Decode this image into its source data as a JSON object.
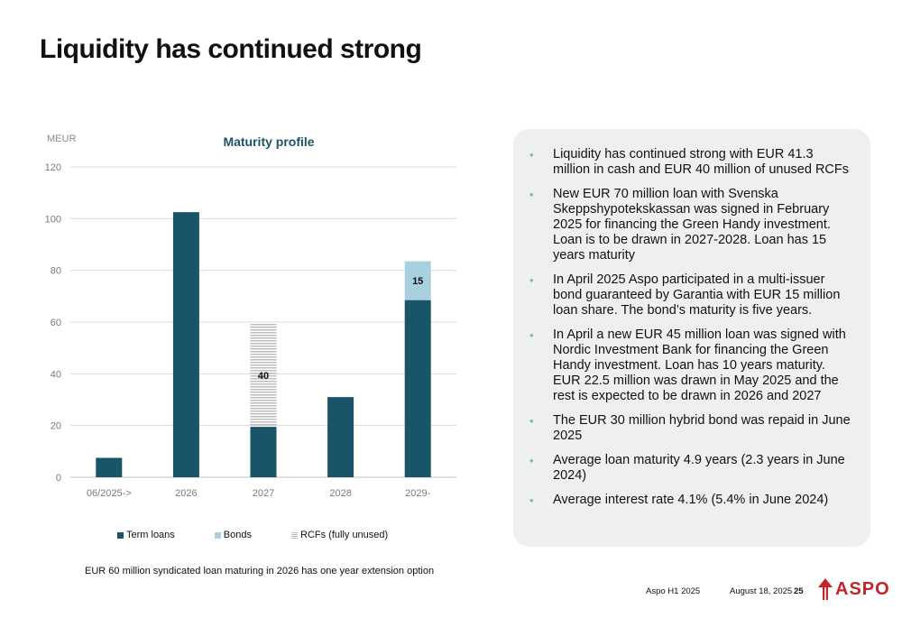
{
  "title": "Liquidity has continued strong",
  "chart_data": {
    "type": "bar",
    "title": "Maturity profile",
    "unit_label": "MEUR",
    "ylim": [
      0,
      120
    ],
    "y_ticks": [
      0,
      20,
      40,
      60,
      80,
      100,
      120
    ],
    "categories": [
      "06/2025->",
      "2026",
      "2027",
      "2028",
      "2029-"
    ],
    "stacked": true,
    "series": [
      {
        "name": "Term loans",
        "values": [
          7.5,
          102.5,
          19.5,
          31,
          68.5
        ],
        "color": "#1a5468",
        "pattern": "solid"
      },
      {
        "name": "Bonds",
        "values": [
          0,
          0,
          0,
          0,
          15
        ],
        "color": "#a9d0de",
        "pattern": "solid"
      },
      {
        "name": "RCFs (fully unused)",
        "values": [
          0,
          0,
          40,
          0,
          0
        ],
        "color": "#bdbdbd",
        "pattern": "horizontal-stripes"
      }
    ],
    "data_labels": [
      {
        "category": "2027",
        "series": "RCFs (fully unused)",
        "text": "40"
      },
      {
        "category": "2029-",
        "series": "Bonds",
        "text": "15"
      }
    ],
    "grid": true,
    "legend": "bottom"
  },
  "footnote": "EUR 60 million syndicated loan maturing in 2026 has one year extension option",
  "bullets": [
    "Liquidity has continued strong with EUR 41.3 million in cash and EUR 40 million of unused RCFs",
    "New EUR 70 million loan with Svenska Skeppshypotekskassan was signed in February 2025 for financing  the Green Handy investment. Loan is to be drawn in 2027-2028. Loan has 15 years maturity",
    "In April 2025 Aspo participated in a multi-issuer bond guaranteed by Garantia with EUR 15 million loan share. The bond’s maturity is five years.",
    "In April a new EUR 45 million loan was signed with Nordic Investment Bank for financing the Green Handy investment. Loan has 10 years maturity. EUR 22.5 million was drawn in May 2025 and the rest is expected to be drawn in 2026 and 2027",
    "The EUR 30 million hybrid bond was repaid in June 2025",
    "Average loan maturity 4.9 years (2.3 years in June 2024)",
    "Average interest rate 4.1% (5.4% in June 2024)"
  ],
  "bullet_glyph": "•",
  "footer": {
    "report": "Aspo H1 2025",
    "date": "August 18, 2025",
    "page": "25"
  },
  "logo": {
    "text": "ASPO",
    "icon": "aspo-arrow-icon",
    "color": "#c2262b"
  }
}
